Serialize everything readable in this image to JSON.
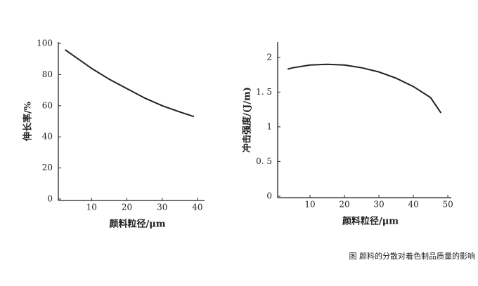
{
  "chart_data": [
    {
      "type": "line",
      "xlabel": "颜料粒径/μm",
      "ylabel": "伸长率/%",
      "x": [
        2.5,
        5,
        10,
        15,
        20,
        25,
        30,
        35,
        39
      ],
      "series": [
        {
          "color": "#222222",
          "values": [
            96,
            92,
            84,
            77,
            71,
            65,
            60,
            56,
            53
          ]
        }
      ],
      "xlim": [
        0,
        42
      ],
      "ylim": [
        0,
        100
      ],
      "xticks": [
        10,
        20,
        30,
        40
      ],
      "yticks": [
        0,
        20,
        40,
        60,
        80,
        100
      ]
    },
    {
      "type": "line",
      "xlabel": "颜料粒径/μm",
      "ylabel": "冲击强度/(J/m)",
      "x": [
        3.5,
        5,
        10,
        15,
        20,
        25,
        30,
        35,
        40,
        45,
        48
      ],
      "series": [
        {
          "color": "#222222",
          "values": [
            1.83,
            1.85,
            1.89,
            1.9,
            1.89,
            1.85,
            1.79,
            1.7,
            1.58,
            1.42,
            1.2
          ]
        }
      ],
      "xlim": [
        0,
        51
      ],
      "ylim": [
        0,
        2.2
      ],
      "xticks": [
        10,
        20,
        30,
        40,
        50
      ],
      "yticks": [
        0,
        {
          "value": 0.5,
          "label": "0. 5"
        },
        1,
        {
          "value": 1.5,
          "label": "1. 5"
        },
        2
      ]
    }
  ],
  "caption": "图 颜料的分散对着色制品质量的影响"
}
